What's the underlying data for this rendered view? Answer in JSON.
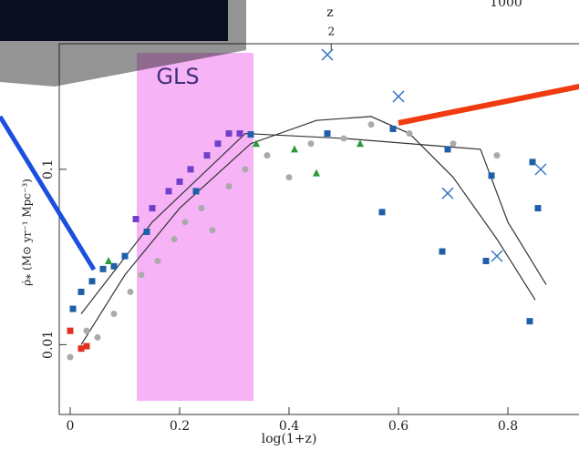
{
  "chart_data": {
    "type": "scatter",
    "x_label": "log(1+z)",
    "y_label": "ρ̇⁎ (M⊙ yr⁻¹ Mpc⁻³)",
    "annotation": "GLS",
    "cropped_label": "1000",
    "xlim": [
      -0.02,
      0.93
    ],
    "ylim": [
      0.004,
      0.52
    ],
    "log_y": true,
    "xticks": [
      0,
      0.2,
      0.4,
      0.6,
      0.8
    ],
    "yticks": [
      0.01,
      0.1
    ],
    "top_axis": {
      "label": "z",
      "ticks": [
        2
      ]
    },
    "series": [
      {
        "color": "#1f5fa8",
        "marker": "square",
        "x": [
          0.005,
          0.02,
          0.04,
          0.06,
          0.08,
          0.1,
          0.14,
          0.23,
          0.33,
          0.47,
          0.59,
          0.69,
          0.77,
          0.57,
          0.68,
          0.76,
          0.84,
          0.845,
          0.855
        ],
        "values": [
          0.016,
          0.02,
          0.023,
          0.027,
          0.028,
          0.032,
          0.044,
          0.075,
          0.158,
          0.16,
          0.17,
          0.13,
          0.092,
          0.057,
          0.034,
          0.03,
          0.0136,
          0.11,
          0.06
        ]
      },
      {
        "color": "#3a78c2",
        "marker": "cross",
        "x": [
          0.47,
          0.6,
          0.69,
          0.78,
          0.86
        ],
        "values": [
          0.45,
          0.26,
          0.073,
          0.032,
          0.1
        ]
      },
      {
        "color": "#7040c8",
        "marker": "square",
        "x": [
          0.12,
          0.15,
          0.18,
          0.2,
          0.22,
          0.25,
          0.27,
          0.29,
          0.31
        ],
        "values": [
          0.052,
          0.06,
          0.075,
          0.085,
          0.1,
          0.12,
          0.14,
          0.16,
          0.16
        ]
      },
      {
        "color": "#2a9a3a",
        "marker": "triangle",
        "x": [
          0.07,
          0.34,
          0.41,
          0.45,
          0.53
        ],
        "values": [
          0.03,
          0.14,
          0.13,
          0.095,
          0.14
        ]
      },
      {
        "color": "#aaaaaa",
        "marker": "circle",
        "x": [
          0.0,
          0.03,
          0.05,
          0.08,
          0.11,
          0.13,
          0.16,
          0.19,
          0.21,
          0.24,
          0.26,
          0.29,
          0.32,
          0.36,
          0.4,
          0.44,
          0.5,
          0.55,
          0.62,
          0.7,
          0.78
        ],
        "values": [
          0.0085,
          0.012,
          0.011,
          0.015,
          0.02,
          0.025,
          0.03,
          0.04,
          0.05,
          0.06,
          0.045,
          0.08,
          0.1,
          0.12,
          0.09,
          0.14,
          0.15,
          0.18,
          0.16,
          0.14,
          0.12
        ]
      },
      {
        "color": "#e03020",
        "marker": "square",
        "x": [
          0.0,
          0.02,
          0.03
        ],
        "values": [
          0.012,
          0.0095,
          0.0098
        ]
      }
    ],
    "lines": [
      {
        "color": "#333",
        "x": [
          0.02,
          0.1,
          0.2,
          0.33,
          0.45,
          0.55,
          0.62,
          0.7,
          0.78,
          0.85
        ],
        "values": [
          0.01,
          0.025,
          0.06,
          0.14,
          0.19,
          0.2,
          0.16,
          0.09,
          0.04,
          0.018
        ]
      },
      {
        "color": "#333",
        "x": [
          0.02,
          0.15,
          0.32,
          0.5,
          0.75,
          0.8,
          0.87
        ],
        "values": [
          0.015,
          0.05,
          0.16,
          0.15,
          0.13,
          0.05,
          0.022
        ]
      }
    ]
  }
}
